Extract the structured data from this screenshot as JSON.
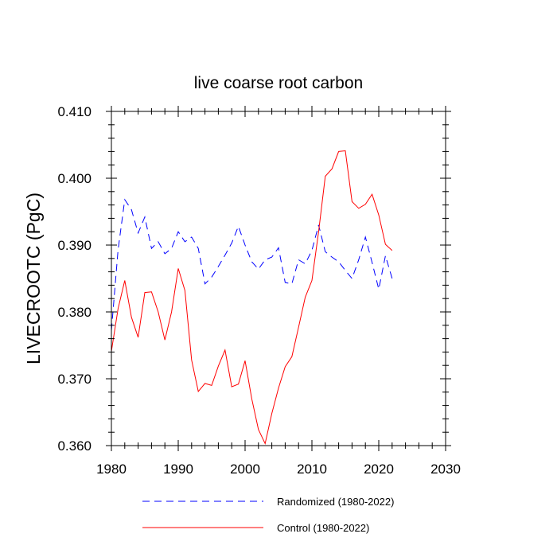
{
  "chart_data": {
    "type": "line",
    "title": "live coarse root carbon",
    "xlabel": "",
    "ylabel": "LIVECROOTC  (PgC)",
    "xlim": [
      1980,
      2030
    ],
    "ylim": [
      0.36,
      0.41
    ],
    "xticks": [
      1980,
      1990,
      2000,
      2010,
      2020,
      2030
    ],
    "xtick_labels": [
      "1980",
      "1990",
      "2000",
      "2010",
      "2020",
      "2030"
    ],
    "yticks": [
      0.36,
      0.37,
      0.38,
      0.39,
      0.4,
      0.41
    ],
    "ytick_labels": [
      "0.360",
      "0.370",
      "0.380",
      "0.390",
      "0.400",
      "0.410"
    ],
    "x": [
      1980,
      1981,
      1982,
      1983,
      1984,
      1985,
      1986,
      1987,
      1988,
      1989,
      1990,
      1991,
      1992,
      1993,
      1994,
      1995,
      1996,
      1997,
      1998,
      1999,
      2000,
      2001,
      2002,
      2003,
      2004,
      2005,
      2006,
      2007,
      2008,
      2009,
      2010,
      2011,
      2012,
      2013,
      2014,
      2015,
      2016,
      2017,
      2018,
      2019,
      2020,
      2021,
      2022
    ],
    "series": [
      {
        "name": "Randomized (1980-2022)",
        "color": "#0000ff",
        "dash": "dashed",
        "values": [
          0.3772,
          0.3893,
          0.3968,
          0.3953,
          0.3918,
          0.3942,
          0.3895,
          0.3905,
          0.3887,
          0.3895,
          0.392,
          0.3905,
          0.3912,
          0.3895,
          0.3842,
          0.3852,
          0.3868,
          0.3885,
          0.3903,
          0.3928,
          0.39,
          0.3875,
          0.3864,
          0.3878,
          0.3882,
          0.3896,
          0.3844,
          0.3842,
          0.3878,
          0.3872,
          0.3892,
          0.393,
          0.389,
          0.3882,
          0.3875,
          0.3862,
          0.385,
          0.3878,
          0.3912,
          0.3874,
          0.3834,
          0.3884,
          0.385
        ]
      },
      {
        "name": "Control (1980-2022)",
        "color": "#ff0000",
        "dash": "solid",
        "values": [
          0.3741,
          0.3805,
          0.3847,
          0.3792,
          0.3762,
          0.3829,
          0.383,
          0.38,
          0.3758,
          0.38,
          0.3865,
          0.3832,
          0.3728,
          0.3681,
          0.3693,
          0.369,
          0.3719,
          0.3743,
          0.3688,
          0.3692,
          0.3727,
          0.367,
          0.3624,
          0.3603,
          0.3648,
          0.3686,
          0.3718,
          0.3733,
          0.3777,
          0.3822,
          0.3847,
          0.392,
          0.4003,
          0.4014,
          0.404,
          0.4041,
          0.3965,
          0.3955,
          0.3961,
          0.3976,
          0.3945,
          0.3901,
          0.3892
        ]
      }
    ],
    "legend_position": "bottom"
  }
}
